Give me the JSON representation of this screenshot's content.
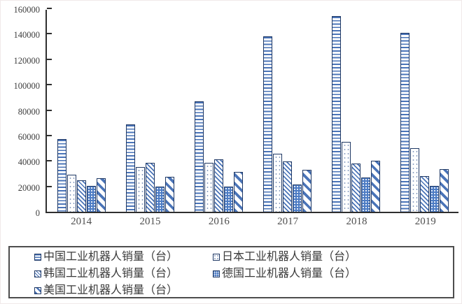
{
  "chart_data": {
    "type": "bar",
    "title": "",
    "xlabel": "",
    "ylabel": "",
    "categories": [
      "2014",
      "2015",
      "2016",
      "2017",
      "2018",
      "2019"
    ],
    "series": [
      {
        "key": "china",
        "name": "中国工业机器人销量（台）",
        "pattern": "horizontal-stripes",
        "values": [
          57000,
          68500,
          87000,
          138000,
          154000,
          140500
        ]
      },
      {
        "key": "japan",
        "name": "日本工业机器人销量（台）",
        "pattern": "sparse-dots",
        "values": [
          29300,
          35000,
          38600,
          45600,
          55200,
          49900
        ]
      },
      {
        "key": "korea",
        "name": "韩国工业机器人销量（台）",
        "pattern": "thin-diagonal-stripes",
        "values": [
          24700,
          38300,
          41400,
          39700,
          37800,
          27900
        ]
      },
      {
        "key": "germany",
        "name": "德国工业机器人销量（台）",
        "pattern": "blue-dotted-fill",
        "values": [
          20100,
          19900,
          20000,
          21400,
          26700,
          20500
        ]
      },
      {
        "key": "usa",
        "name": "美国工业机器人销量（台）",
        "pattern": "wide-diagonal-stripes",
        "values": [
          26200,
          27500,
          31400,
          33200,
          40400,
          33300
        ]
      }
    ],
    "ylim": [
      0,
      160000
    ],
    "ytick_step": 20000,
    "ytick_labels": [
      "0",
      "20000",
      "40000",
      "60000",
      "80000",
      "100000",
      "120000",
      "140000",
      "160000"
    ],
    "grid": false,
    "legend_position": "bottom-box",
    "colors": {
      "bar_blue": "#4a74b8",
      "bar_outline": "#1f3864",
      "germany_fill": "#4d7cc4",
      "axis": "#2f2f2f",
      "tick_text": "#3d3d3d",
      "year_text": "#4f4f4f",
      "legend_text": "#3a3a3a",
      "legend_border": "#4d4d4d"
    }
  }
}
